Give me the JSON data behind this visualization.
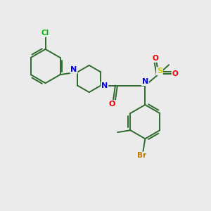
{
  "background_color": "#ebebeb",
  "bond_color": "#2d6b2d",
  "atom_colors": {
    "N": "#0000ee",
    "O": "#ee0000",
    "S": "#cccc00",
    "Cl": "#00bb00",
    "Br": "#bb7700",
    "C": "#2d6b2d"
  },
  "figsize": [
    3.0,
    3.0
  ],
  "dpi": 100
}
